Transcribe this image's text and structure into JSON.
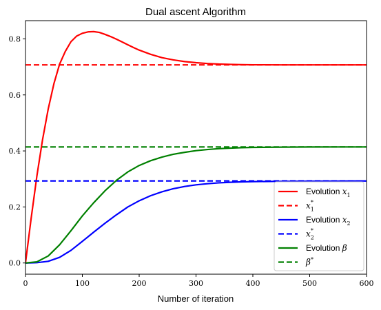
{
  "chart_data": {
    "type": "line",
    "title": "Dual ascent Algorithm",
    "xlabel": "Number of iteration",
    "ylabel": "",
    "xlim": [
      0,
      600
    ],
    "ylim": [
      -0.04,
      0.865
    ],
    "xticks": [
      0,
      100,
      200,
      300,
      400,
      500,
      600
    ],
    "xtick_labels": [
      "0",
      "100",
      "200",
      "300",
      "400",
      "500",
      "600"
    ],
    "yticks": [
      0.0,
      0.2,
      0.4,
      0.6,
      0.8
    ],
    "ytick_labels": [
      "0.0",
      "0.2",
      "0.4",
      "0.6",
      "0.8"
    ],
    "grid": false,
    "legend_position": "lower-right",
    "series": [
      {
        "name": "Evolution x1",
        "legend_text": "Evolution",
        "legend_math": "x",
        "legend_sub": "1",
        "legend_sup": "",
        "color": "#ff0000",
        "style": "solid",
        "x": [
          0,
          10,
          20,
          30,
          40,
          50,
          60,
          70,
          80,
          90,
          100,
          110,
          120,
          130,
          140,
          150,
          160,
          170,
          180,
          190,
          200,
          220,
          240,
          260,
          280,
          300,
          320,
          340,
          360,
          380,
          400,
          450,
          500,
          550,
          600
        ],
        "y": [
          0.0,
          0.16,
          0.31,
          0.44,
          0.55,
          0.64,
          0.71,
          0.755,
          0.79,
          0.81,
          0.82,
          0.825,
          0.826,
          0.823,
          0.816,
          0.808,
          0.799,
          0.789,
          0.779,
          0.769,
          0.76,
          0.745,
          0.733,
          0.725,
          0.719,
          0.715,
          0.712,
          0.71,
          0.709,
          0.708,
          0.7075,
          0.7072,
          0.7071,
          0.7071,
          0.7071
        ]
      },
      {
        "name": "x1*",
        "legend_text": "",
        "legend_math": "x",
        "legend_sub": "1",
        "legend_sup": "*",
        "color": "#ff0000",
        "style": "dashed",
        "x": [
          0,
          600
        ],
        "y": [
          0.7071,
          0.7071
        ]
      },
      {
        "name": "Evolution x2",
        "legend_text": "Evolution",
        "legend_math": "x",
        "legend_sub": "2",
        "legend_sup": "",
        "color": "#0000ff",
        "style": "solid",
        "x": [
          0,
          20,
          40,
          60,
          80,
          100,
          120,
          140,
          160,
          180,
          200,
          220,
          240,
          260,
          280,
          300,
          320,
          340,
          360,
          380,
          400,
          450,
          500,
          550,
          600
        ],
        "y": [
          0.0,
          0.001,
          0.006,
          0.02,
          0.045,
          0.077,
          0.11,
          0.142,
          0.172,
          0.2,
          0.222,
          0.24,
          0.254,
          0.265,
          0.273,
          0.279,
          0.283,
          0.286,
          0.288,
          0.2895,
          0.2905,
          0.2915,
          0.292,
          0.2925,
          0.2929
        ]
      },
      {
        "name": "x2*",
        "legend_text": "",
        "legend_math": "x",
        "legend_sub": "2",
        "legend_sup": "*",
        "color": "#0000ff",
        "style": "dashed",
        "x": [
          0,
          600
        ],
        "y": [
          0.2929,
          0.2929
        ]
      },
      {
        "name": "Evolution beta",
        "legend_text": "Evolution",
        "legend_math": "β",
        "legend_sub": "",
        "legend_sup": "",
        "color": "#008000",
        "style": "solid",
        "x": [
          0,
          20,
          40,
          60,
          80,
          100,
          120,
          140,
          160,
          180,
          200,
          220,
          240,
          260,
          280,
          300,
          320,
          340,
          360,
          380,
          400,
          450,
          500,
          550,
          600
        ],
        "y": [
          0.0,
          0.004,
          0.025,
          0.065,
          0.115,
          0.168,
          0.215,
          0.258,
          0.295,
          0.325,
          0.348,
          0.365,
          0.378,
          0.388,
          0.395,
          0.401,
          0.405,
          0.408,
          0.41,
          0.4115,
          0.4125,
          0.4135,
          0.414,
          0.4142,
          0.4142
        ]
      },
      {
        "name": "beta*",
        "legend_text": "",
        "legend_math": "β",
        "legend_sub": "",
        "legend_sup": "*",
        "color": "#008000",
        "style": "dashed",
        "x": [
          0,
          600
        ],
        "y": [
          0.4142,
          0.4142
        ]
      }
    ]
  }
}
